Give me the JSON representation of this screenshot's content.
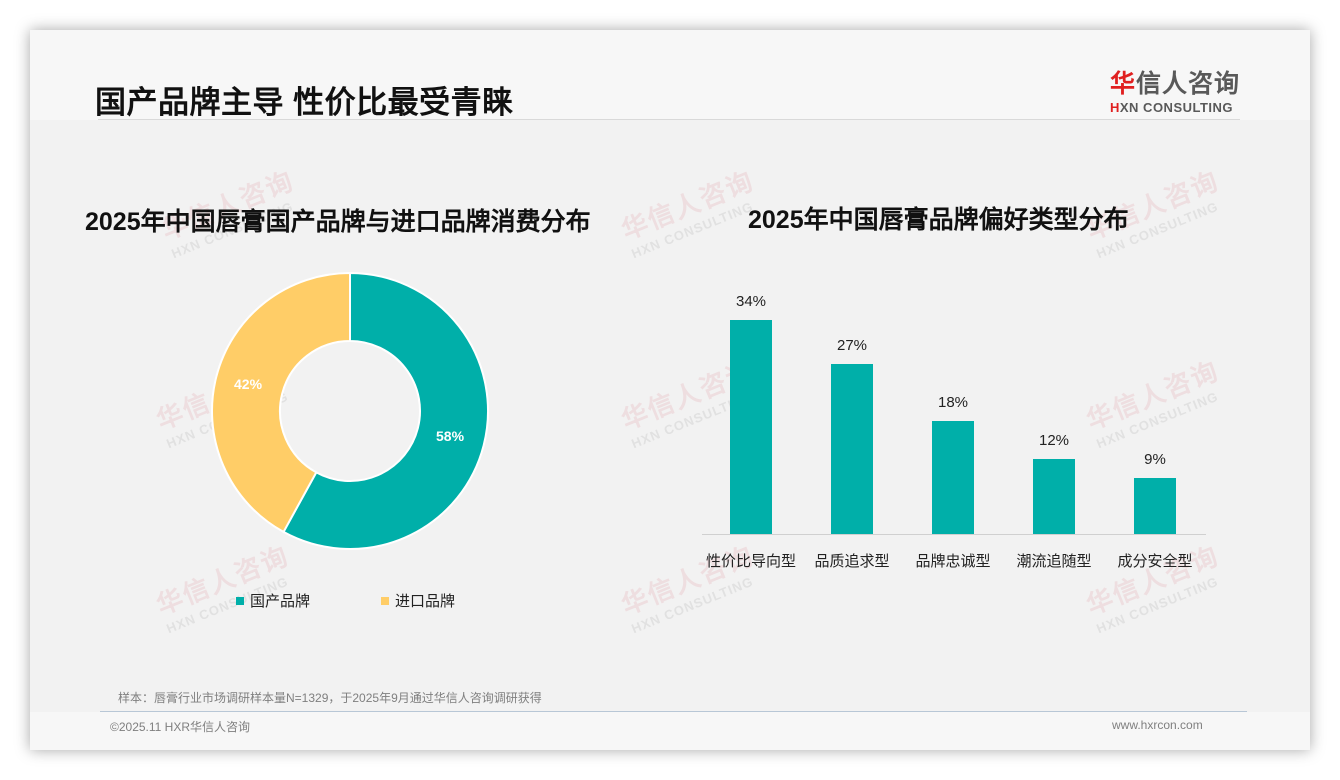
{
  "header": {
    "title": "国产品牌主导 性价比最受青睐",
    "logo": {
      "cn_first": "华",
      "cn_rest": "信人咨询",
      "en_first": "H",
      "en_rest": "XN CONSULTING"
    }
  },
  "watermark": {
    "cn": "华信人咨询",
    "en": "HXN CONSULTING"
  },
  "left_chart": {
    "title": "2025年中国唇膏国产品牌与进口品牌消费分布",
    "slices": [
      {
        "label": "国产品牌",
        "value": 58,
        "display": "58%",
        "color": "#00afa9"
      },
      {
        "label": "进口品牌",
        "value": 42,
        "display": "42%",
        "color": "#ffcd67"
      }
    ]
  },
  "right_chart": {
    "title": "2025年中国唇膏品牌偏好类型分布",
    "bar_color": "#00afa9",
    "bars": [
      {
        "label": "性价比导向型",
        "value": 34,
        "display": "34%"
      },
      {
        "label": "品质追求型",
        "value": 27,
        "display": "27%"
      },
      {
        "label": "品牌忠诚型",
        "value": 18,
        "display": "18%"
      },
      {
        "label": "潮流追随型",
        "value": 12,
        "display": "12%"
      },
      {
        "label": "成分安全型",
        "value": 9,
        "display": "9%"
      }
    ]
  },
  "chart_data": [
    {
      "type": "pie",
      "title": "2025年中国唇膏国产品牌与进口品牌消费分布",
      "categories": [
        "国产品牌",
        "进口品牌"
      ],
      "values": [
        58,
        42
      ],
      "unit": "%",
      "legend_position": "bottom",
      "donut": true
    },
    {
      "type": "bar",
      "title": "2025年中国唇膏品牌偏好类型分布",
      "categories": [
        "性价比导向型",
        "品质追求型",
        "品牌忠诚型",
        "潮流追随型",
        "成分安全型"
      ],
      "values": [
        34,
        27,
        18,
        12,
        9
      ],
      "unit": "%",
      "xlabel": "",
      "ylabel": "",
      "ylim": [
        0,
        40
      ],
      "grid": false
    }
  ],
  "footer": {
    "note": "样本：唇膏行业市场调研样本量N=1329，于2025年9月通过华信人咨询调研获得",
    "copyright": "©2025.11 HXR华信人咨询",
    "website": "www.hxrcon.com"
  }
}
